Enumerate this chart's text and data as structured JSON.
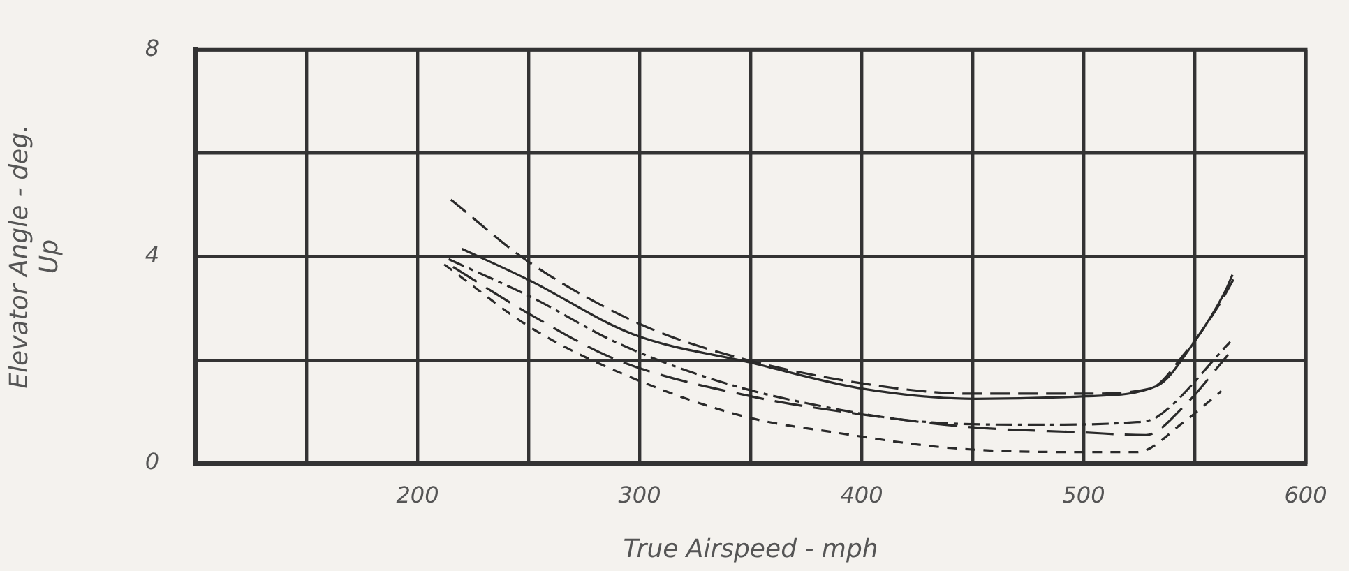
{
  "chart_data": {
    "type": "line",
    "xlabel": "True Airspeed - mph",
    "ylabel": "Elevator Angle - deg.\nUp",
    "xlim": [
      100,
      600
    ],
    "ylim": [
      0,
      8
    ],
    "xticks": [
      {
        "value": 100,
        "label": null
      },
      {
        "value": 150,
        "label": null
      },
      200,
      {
        "value": 250,
        "label": null
      },
      300,
      {
        "value": 350,
        "label": null
      },
      400,
      {
        "value": 450,
        "label": null
      },
      500,
      {
        "value": 550,
        "label": null
      },
      600
    ],
    "yticks": [
      0,
      {
        "value": 2,
        "label": null
      },
      4,
      {
        "value": 6,
        "label": null
      },
      8
    ],
    "grid": true,
    "marker": "none",
    "series": [
      {
        "color": "#2a2a2a",
        "line_style": "solid",
        "x": [
          220,
          250,
          297,
          350,
          400,
          451,
          501,
          533,
          549,
          564,
          567
        ],
        "values": [
          4.15,
          3.55,
          2.5,
          1.95,
          1.45,
          1.25,
          1.3,
          1.5,
          2.3,
          3.35,
          3.65
        ]
      },
      {
        "color": "#2a2a2a",
        "line_style": "dashed",
        "x": [
          215,
          250,
          300,
          340,
          400,
          450,
          500,
          530,
          545,
          560,
          568
        ],
        "values": [
          5.1,
          3.9,
          2.7,
          2.1,
          1.55,
          1.35,
          1.35,
          1.45,
          2.1,
          3.0,
          3.6
        ]
      },
      {
        "color": "#2a2a2a",
        "line_style": "dashed",
        "x": [
          214,
          252,
          289,
          335,
          377,
          430,
          478,
          524,
          533,
          566
        ],
        "values": [
          3.95,
          3.2,
          2.35,
          1.6,
          1.15,
          0.8,
          0.75,
          0.8,
          0.9,
          2.35
        ]
      },
      {
        "color": "#2a2a2a",
        "line_style": "dashed",
        "x": [
          216,
          250,
          290,
          350,
          400,
          450,
          500,
          528,
          545,
          565
        ],
        "values": [
          3.8,
          2.9,
          2.0,
          1.3,
          0.95,
          0.7,
          0.6,
          0.55,
          1.1,
          2.1
        ]
      },
      {
        "color": "#2a2a2a",
        "line_style": "dashed",
        "x": [
          212,
          252,
          297,
          348,
          388,
          440,
          501,
          524,
          545,
          562
        ],
        "values": [
          3.85,
          2.6,
          1.65,
          0.9,
          0.6,
          0.3,
          0.22,
          0.22,
          0.8,
          1.4
        ]
      }
    ]
  }
}
